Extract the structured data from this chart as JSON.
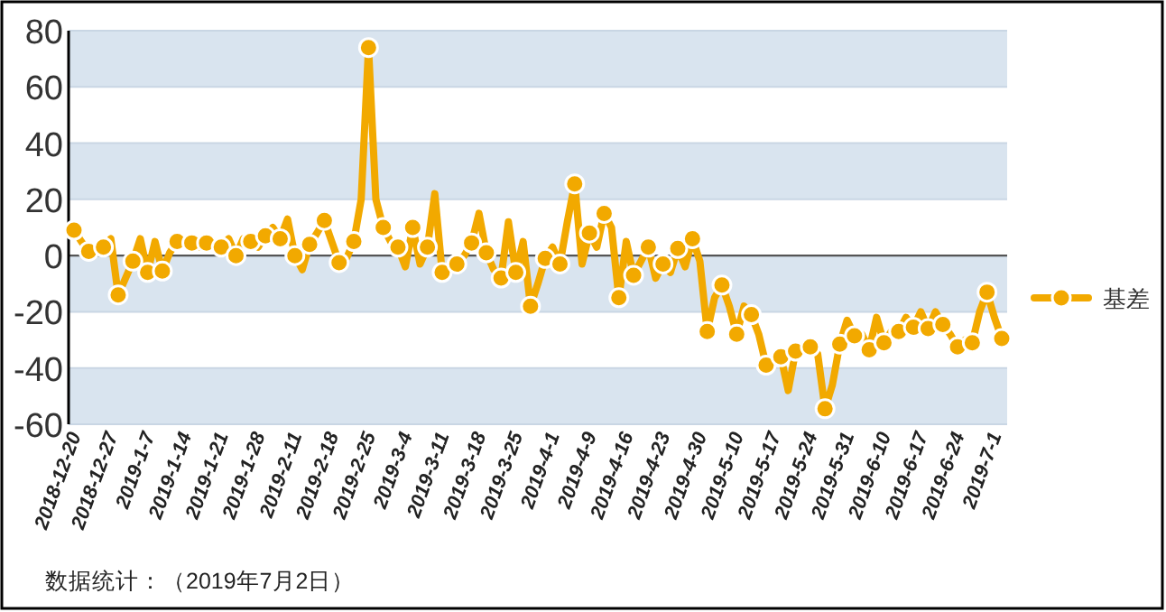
{
  "chart_data": {
    "type": "line",
    "categories": [
      "2018-12-20",
      null,
      null,
      null,
      null,
      "2018-12-27",
      null,
      null,
      null,
      null,
      "2019-1-7",
      null,
      null,
      null,
      null,
      "2019-1-14",
      null,
      null,
      null,
      null,
      "2019-1-21",
      null,
      null,
      null,
      null,
      "2019-1-28",
      null,
      null,
      null,
      null,
      "2019-2-11",
      null,
      null,
      null,
      null,
      "2019-2-18",
      null,
      null,
      null,
      null,
      "2019-2-25",
      null,
      null,
      null,
      null,
      "2019-3-4",
      null,
      null,
      null,
      null,
      "2019-3-11",
      null,
      null,
      null,
      null,
      "2019-3-18",
      null,
      null,
      null,
      null,
      "2019-3-25",
      null,
      null,
      null,
      null,
      "2019-4-1",
      null,
      null,
      null,
      null,
      "2019-4-9",
      null,
      null,
      null,
      null,
      "2019-4-16",
      null,
      null,
      null,
      null,
      "2019-4-23",
      null,
      null,
      null,
      null,
      "2019-4-30",
      null,
      null,
      null,
      null,
      "2019-5-10",
      null,
      null,
      null,
      null,
      "2019-5-17",
      null,
      null,
      null,
      null,
      "2019-5-24",
      null,
      null,
      null,
      null,
      "2019-5-31",
      null,
      null,
      null,
      null,
      "2019-6-10",
      null,
      null,
      null,
      null,
      "2019-6-17",
      null,
      null,
      null,
      null,
      "2019-6-24",
      null,
      null,
      null,
      null,
      "2019-7-1",
      null
    ],
    "series": [
      {
        "name": "基差",
        "color": "#f2a900",
        "values": [
          9,
          5,
          1.5,
          2,
          3,
          6,
          -14,
          -8,
          -2,
          6,
          -6,
          5,
          -5.5,
          1,
          5,
          4,
          4.5,
          3,
          4.5,
          3,
          3,
          6,
          0,
          6,
          5,
          3,
          7,
          10,
          6,
          13,
          0,
          -5,
          4,
          8,
          12.5,
          5,
          -2.5,
          -1,
          5,
          20,
          74,
          20,
          10,
          5,
          3,
          -4,
          10,
          -3,
          3,
          22,
          -6,
          -4,
          -3,
          0,
          4.5,
          15,
          1,
          -5,
          -8,
          12,
          -6,
          5,
          -18,
          -10,
          -1,
          3,
          -3,
          12,
          25.5,
          -3,
          8,
          3,
          15,
          10,
          -15,
          5,
          -7,
          -2,
          3,
          -8,
          -3,
          -6,
          2.5,
          -4,
          6,
          -2,
          -27,
          -15,
          -10.5,
          -18,
          -28,
          -18,
          -21,
          -28,
          -39,
          -37,
          -36,
          -48,
          -34,
          -33,
          -32.5,
          -35,
          -54.5,
          -46,
          -31.5,
          -23,
          -28.5,
          -28,
          -33.5,
          -22,
          -31,
          -27,
          -27,
          -22,
          -25.5,
          -20,
          -26,
          -20,
          -24.5,
          -28,
          -32.5,
          -30,
          -31,
          -20,
          -13,
          -22,
          -29.5
        ]
      }
    ],
    "ylim": [
      -60,
      80
    ],
    "yticks": [
      -60,
      -40,
      -20,
      0,
      20,
      40,
      60,
      80
    ],
    "grid": "y",
    "legend": "right",
    "marker": "circle",
    "line_style": "solid",
    "ref_lines": [
      {
        "axis": "y",
        "value": 0,
        "color": "#555555"
      }
    ],
    "annotations": [
      "数据统计：（2019年7月2日）"
    ]
  }
}
